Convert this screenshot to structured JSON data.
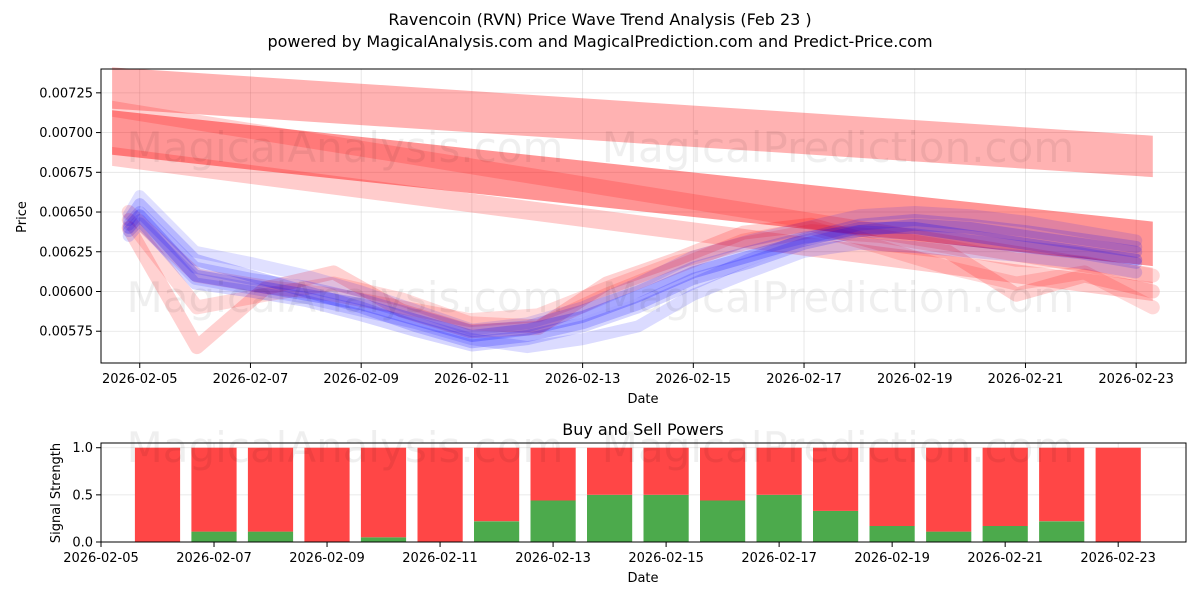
{
  "title_line1": "Ravencoin (RVN) Price Wave Trend Analysis (Feb 23 )",
  "title_line2": "powered by MagicalAnalysis.com and MagicalPrediction.com and Predict-Price.com",
  "watermarks": [
    "MagicalAnalysis.com",
    "MagicalPrediction.com"
  ],
  "colors": {
    "red": "#ff0000",
    "blue": "#0000ff",
    "buy": "#4caa4c",
    "sell": "#ff4646"
  },
  "chart_data": [
    {
      "type": "line",
      "title": "",
      "xlabel": "Date",
      "ylabel": "Price",
      "xlim": [
        "2026-02-04.3",
        "2026-02-23.9"
      ],
      "ylim": [
        0.00555,
        0.0074
      ],
      "xticks": [
        "2026-02-05",
        "2026-02-07",
        "2026-02-09",
        "2026-02-11",
        "2026-02-13",
        "2026-02-15",
        "2026-02-17",
        "2026-02-19",
        "2026-02-21",
        "2026-02-23"
      ],
      "yticks": [
        "0.00575",
        "0.00600",
        "0.00625",
        "0.00650",
        "0.00675",
        "0.00700",
        "0.00725"
      ],
      "red_bands": [
        {
          "x_start": "2026-02-04.5",
          "x_end": "2026-02-23.3",
          "y_start": 0.00728,
          "y_end": 0.00685,
          "width": 0.00026,
          "alpha": 0.3
        },
        {
          "x_start": "2026-02-04.5",
          "x_end": "2026-02-23.3",
          "y_start": 0.007,
          "y_end": 0.0063,
          "width": 0.00028,
          "alpha": 0.42
        },
        {
          "x_start": "2026-02-04.5",
          "x_end": "2026-02-23.3",
          "y_start": 0.00685,
          "y_end": 0.006,
          "width": 0.00012,
          "alpha": 0.2
        },
        {
          "x_start": "2026-02-04.5",
          "x_end": "2026-02-23.3",
          "y_start": 0.00715,
          "y_end": 0.0061,
          "width": 0.0001,
          "alpha": 0.18
        }
      ],
      "red_waves": [
        {
          "values": [
            0.0064,
            0.00565,
            0.00602,
            0.00612,
            0.00588,
            0.00575,
            0.00577,
            0.00605,
            0.0062,
            0.00637,
            0.00642,
            0.0063,
            0.00625,
            0.00598,
            0.0061,
            0.006
          ],
          "alpha": 0.18
        },
        {
          "values": [
            0.00645,
            0.0059,
            0.00598,
            0.00605,
            0.00595,
            0.0058,
            0.00578,
            0.00598,
            0.00615,
            0.00632,
            0.0064,
            0.00628,
            0.00615,
            0.00605,
            0.00612,
            0.0059
          ],
          "alpha": 0.15
        },
        {
          "values": [
            0.0065,
            0.0061,
            0.00603,
            0.00598,
            0.0059,
            0.00582,
            0.00585,
            0.00602,
            0.00618,
            0.0063,
            0.00638,
            0.00635,
            0.00628,
            0.0062,
            0.00618,
            0.0061
          ],
          "alpha": 0.15
        }
      ],
      "blue_x": [
        "2026-02-04.8",
        "2026-02-05",
        "2026-02-06",
        "2026-02-07",
        "2026-02-08",
        "2026-02-09",
        "2026-02-10",
        "2026-02-11",
        "2026-02-12",
        "2026-02-13",
        "2026-02-14",
        "2026-02-15",
        "2026-02-16",
        "2026-02-17",
        "2026-02-18",
        "2026-02-19",
        "2026-02-20",
        "2026-02-21",
        "2026-02-22",
        "2026-02-23"
      ],
      "blue_waves": [
        {
          "values": [
            0.0064,
            0.00648,
            0.0061,
            0.00604,
            0.00598,
            0.00592,
            0.00582,
            0.00572,
            0.00576,
            0.00584,
            0.00597,
            0.00612,
            0.00622,
            0.00632,
            0.0064,
            0.0064,
            0.00635,
            0.0063,
            0.00625,
            0.0062
          ],
          "alpha": 0.22
        },
        {
          "values": [
            0.00645,
            0.00655,
            0.0062,
            0.0061,
            0.006,
            0.0059,
            0.00578,
            0.00568,
            0.00572,
            0.0058,
            0.00592,
            0.00608,
            0.00618,
            0.0063,
            0.00638,
            0.00642,
            0.0064,
            0.00635,
            0.0063,
            0.00625
          ],
          "alpha": 0.18
        },
        {
          "values": [
            0.00638,
            0.00645,
            0.00605,
            0.006,
            0.00594,
            0.00585,
            0.00575,
            0.00566,
            0.0057,
            0.00578,
            0.0059,
            0.00605,
            0.0062,
            0.00633,
            0.00642,
            0.00645,
            0.00642,
            0.00638,
            0.00633,
            0.00628
          ],
          "alpha": 0.16
        },
        {
          "values": [
            0.00642,
            0.0065,
            0.00615,
            0.00608,
            0.00603,
            0.00595,
            0.00585,
            0.00575,
            0.00578,
            0.00588,
            0.006,
            0.00615,
            0.00625,
            0.00634,
            0.00638,
            0.00636,
            0.00632,
            0.00628,
            0.00624,
            0.00618
          ],
          "alpha": 0.16
        },
        {
          "values": [
            0.00635,
            0.00643,
            0.00608,
            0.00602,
            0.00596,
            0.00588,
            0.0058,
            0.0057,
            0.00565,
            0.0057,
            0.00578,
            0.00598,
            0.00612,
            0.00625,
            0.0063,
            0.00628,
            0.00625,
            0.00622,
            0.00618,
            0.00612
          ],
          "alpha": 0.14
        },
        {
          "values": [
            0.00648,
            0.0066,
            0.00625,
            0.00618,
            0.0061,
            0.006,
            0.00588,
            0.00576,
            0.0058,
            0.0059,
            0.00605,
            0.00622,
            0.00632,
            0.0064,
            0.00648,
            0.0065,
            0.00648,
            0.00644,
            0.00638,
            0.00632
          ],
          "alpha": 0.12
        }
      ]
    },
    {
      "type": "bar",
      "title": "Buy and Sell Powers",
      "xlabel": "Date",
      "ylabel": "Signal Strength",
      "xlim": [
        "2026-02-05.0",
        "2026-02-24.2"
      ],
      "ylim": [
        0,
        1.05
      ],
      "xticks": [
        "2026-02-05",
        "2026-02-07",
        "2026-02-09",
        "2026-02-11",
        "2026-02-13",
        "2026-02-15",
        "2026-02-17",
        "2026-02-19",
        "2026-02-21",
        "2026-02-23"
      ],
      "yticks": [
        "0.0",
        "0.5",
        "1.0"
      ],
      "categories": [
        "2026-02-06",
        "2026-02-07",
        "2026-02-08",
        "2026-02-09",
        "2026-02-10",
        "2026-02-11",
        "2026-02-12",
        "2026-02-13",
        "2026-02-14",
        "2026-02-15",
        "2026-02-16",
        "2026-02-17",
        "2026-02-18",
        "2026-02-19",
        "2026-02-20",
        "2026-02-21",
        "2026-02-22",
        "2026-02-23"
      ],
      "series": [
        {
          "name": "Buy",
          "values": [
            0.0,
            0.11,
            0.11,
            0.0,
            0.05,
            0.0,
            0.22,
            0.44,
            0.5,
            0.5,
            0.44,
            0.5,
            0.33,
            0.17,
            0.11,
            0.17,
            0.22,
            0.0
          ]
        },
        {
          "name": "Sell",
          "values": [
            1.0,
            0.89,
            0.89,
            1.0,
            0.95,
            1.0,
            0.78,
            0.56,
            0.5,
            0.5,
            0.56,
            0.5,
            0.67,
            0.83,
            0.89,
            0.83,
            0.78,
            1.0
          ]
        }
      ]
    }
  ]
}
